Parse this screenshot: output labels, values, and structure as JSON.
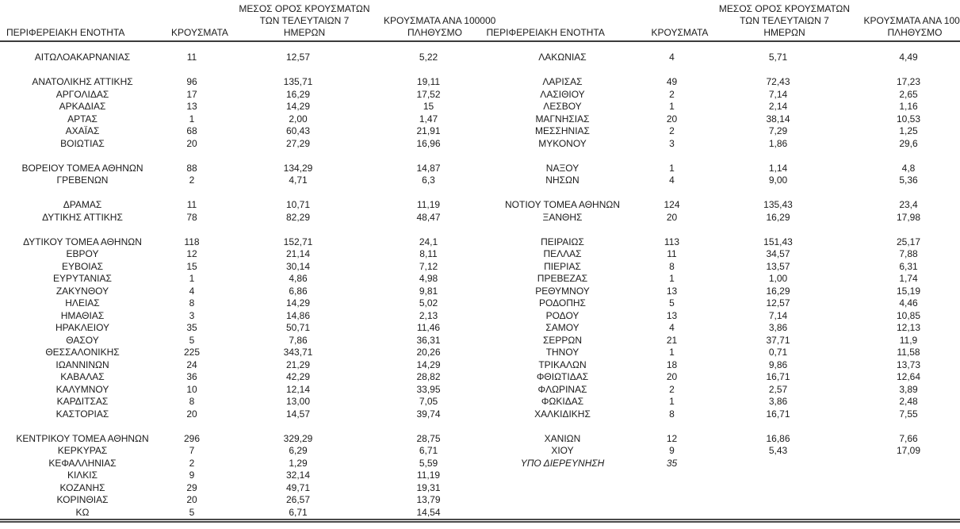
{
  "colors": {
    "background": "#ffffff",
    "text": "#1b1b1b",
    "header_rule": "#3b3b3b",
    "bottom_rule": "#4a4a4a"
  },
  "columns": {
    "region": "ΠΕΡΙΦΕΡΕΙΑΚΗ ΕΝΟΤΗΤΑ",
    "cases": "ΚΡΟΥΣΜΑΤΑ",
    "avg7_lines": [
      "ΜΕΣΟΣ ΟΡΟΣ ΚΡΟΥΣΜΑΤΩΝ",
      "ΤΩΝ ΤΕΛΕΥΤΑΙΩΝ 7",
      "ΗΜΕΡΩΝ"
    ],
    "per100k_lines": [
      "ΚΡΟΥΣΜΑΤΑ ΑΝΑ 100000",
      "ΠΛΗΘΥΣΜΟ"
    ]
  },
  "left_table": {
    "groups": [
      [
        [
          "ΑΙΤΩΛΟΑΚΑΡΝΑΝΙΑΣ",
          "11",
          "12,57",
          "5,22"
        ]
      ],
      [
        [
          "ΑΝΑΤΟΛΙΚΗΣ ΑΤΤΙΚΗΣ",
          "96",
          "135,71",
          "19,11"
        ],
        [
          "ΑΡΓΟΛΙΔΑΣ",
          "17",
          "16,29",
          "17,52"
        ],
        [
          "ΑΡΚΑΔΙΑΣ",
          "13",
          "14,29",
          "15"
        ],
        [
          "ΑΡΤΑΣ",
          "1",
          "2,00",
          "1,47"
        ],
        [
          "ΑΧΑΪΑΣ",
          "68",
          "60,43",
          "21,91"
        ],
        [
          "ΒΟΙΩΤΙΑΣ",
          "20",
          "27,29",
          "16,96"
        ]
      ],
      [
        [
          "ΒΟΡΕΙΟΥ ΤΟΜΕΑ ΑΘΗΝΩΝ",
          "88",
          "134,29",
          "14,87"
        ],
        [
          "ΓΡΕΒΕΝΩΝ",
          "2",
          "4,71",
          "6,3"
        ]
      ],
      [
        [
          "ΔΡΑΜΑΣ",
          "11",
          "10,71",
          "11,19"
        ],
        [
          "ΔΥΤΙΚΗΣ ΑΤΤΙΚΗΣ",
          "78",
          "82,29",
          "48,47"
        ]
      ],
      [
        [
          "ΔΥΤΙΚΟΥ ΤΟΜΕΑ ΑΘΗΝΩΝ",
          "118",
          "152,71",
          "24,1"
        ],
        [
          "ΕΒΡΟΥ",
          "12",
          "21,14",
          "8,11"
        ],
        [
          "ΕΥΒΟΙΑΣ",
          "15",
          "30,14",
          "7,12"
        ],
        [
          "ΕΥΡΥΤΑΝΙΑΣ",
          "1",
          "4,86",
          "4,98"
        ],
        [
          "ΖΑΚΥΝΘΟΥ",
          "4",
          "6,86",
          "9,81"
        ],
        [
          "ΗΛΕΙΑΣ",
          "8",
          "14,29",
          "5,02"
        ],
        [
          "ΗΜΑΘΙΑΣ",
          "3",
          "14,86",
          "2,13"
        ],
        [
          "ΗΡΑΚΛΕΙΟΥ",
          "35",
          "50,71",
          "11,46"
        ],
        [
          "ΘΑΣΟΥ",
          "5",
          "7,86",
          "36,31"
        ],
        [
          "ΘΕΣΣΑΛΟΝΙΚΗΣ",
          "225",
          "343,71",
          "20,26"
        ],
        [
          "ΙΩΑΝΝΙΝΩΝ",
          "24",
          "21,29",
          "14,29"
        ],
        [
          "ΚΑΒΑΛΑΣ",
          "36",
          "42,29",
          "28,82"
        ],
        [
          "ΚΑΛΥΜΝΟΥ",
          "10",
          "12,14",
          "33,95"
        ],
        [
          "ΚΑΡΔΙΤΣΑΣ",
          "8",
          "13,00",
          "7,05"
        ],
        [
          "ΚΑΣΤΟΡΙΑΣ",
          "20",
          "14,57",
          "39,74"
        ]
      ],
      [
        [
          "ΚΕΝΤΡΙΚΟΥ ΤΟΜΕΑ ΑΘΗΝΩΝ",
          "296",
          "329,29",
          "28,75"
        ],
        [
          "ΚΕΡΚΥΡΑΣ",
          "7",
          "6,29",
          "6,71"
        ],
        [
          "ΚΕΦΑΛΛΗΝΙΑΣ",
          "2",
          "1,29",
          "5,59"
        ],
        [
          "ΚΙΛΚΙΣ",
          "9",
          "32,14",
          "11,19"
        ],
        [
          "ΚΟΖΑΝΗΣ",
          "29",
          "49,71",
          "19,31"
        ],
        [
          "ΚΟΡΙΝΘΙΑΣ",
          "20",
          "26,57",
          "13,79"
        ],
        [
          "ΚΩ",
          "5",
          "6,71",
          "14,54"
        ]
      ]
    ]
  },
  "right_table": {
    "groups": [
      [
        [
          "ΛΑΚΩΝΙΑΣ",
          "4",
          "5,71",
          "4,49"
        ]
      ],
      [
        [
          "ΛΑΡΙΣΑΣ",
          "49",
          "72,43",
          "17,23"
        ],
        [
          "ΛΑΣΙΘΙΟΥ",
          "2",
          "7,14",
          "2,65"
        ],
        [
          "ΛΕΣΒΟΥ",
          "1",
          "2,14",
          "1,16"
        ],
        [
          "ΜΑΓΝΗΣΙΑΣ",
          "20",
          "38,14",
          "10,53"
        ],
        [
          "ΜΕΣΣΗΝΙΑΣ",
          "2",
          "7,29",
          "1,25"
        ],
        [
          "ΜΥΚΟΝΟΥ",
          "3",
          "1,86",
          "29,6"
        ]
      ],
      [
        [
          "ΝΑΞΟΥ",
          "1",
          "1,14",
          "4,8"
        ],
        [
          "ΝΗΣΩΝ",
          "4",
          "9,00",
          "5,36"
        ]
      ],
      [
        [
          "ΝΟΤΙΟΥ ΤΟΜΕΑ ΑΘΗΝΩΝ",
          "124",
          "135,43",
          "23,4"
        ],
        [
          "ΞΑΝΘΗΣ",
          "20",
          "16,29",
          "17,98"
        ]
      ],
      [
        [
          "ΠΕΙΡΑΙΩΣ",
          "113",
          "151,43",
          "25,17"
        ],
        [
          "ΠΕΛΛΑΣ",
          "11",
          "34,57",
          "7,88"
        ],
        [
          "ΠΙΕΡΙΑΣ",
          "8",
          "13,57",
          "6,31"
        ],
        [
          "ΠΡΕΒΕΖΑΣ",
          "1",
          "1,00",
          "1,74"
        ],
        [
          "ΡΕΘΥΜΝΟΥ",
          "13",
          "16,29",
          "15,19"
        ],
        [
          "ΡΟΔΟΠΗΣ",
          "5",
          "12,57",
          "4,46"
        ],
        [
          "ΡΟΔΟΥ",
          "13",
          "7,14",
          "10,85"
        ],
        [
          "ΣΑΜΟΥ",
          "4",
          "3,86",
          "12,13"
        ],
        [
          "ΣΕΡΡΩΝ",
          "21",
          "37,71",
          "11,9"
        ],
        [
          "ΤΗΝΟΥ",
          "1",
          "0,71",
          "11,58"
        ],
        [
          "ΤΡΙΚΑΛΩΝ",
          "18",
          "9,86",
          "13,73"
        ],
        [
          "ΦΘΙΩΤΙΔΑΣ",
          "20",
          "16,71",
          "12,64"
        ],
        [
          "ΦΛΩΡΙΝΑΣ",
          "2",
          "2,57",
          "3,89"
        ],
        [
          "ΦΩΚΙΔΑΣ",
          "1",
          "3,86",
          "2,48"
        ],
        [
          "ΧΑΛΚΙΔΙΚΗΣ",
          "8",
          "16,71",
          "7,55"
        ]
      ],
      [
        [
          "ΧΑΝΙΩΝ",
          "12",
          "16,86",
          "7,66"
        ],
        [
          "ΧΙΟΥ",
          "9",
          "5,43",
          "17,09"
        ],
        [
          "ΥΠΟ ΔΙΕΡΕΥΝΗΣΗ",
          "35",
          "",
          "",
          true
        ]
      ]
    ]
  }
}
